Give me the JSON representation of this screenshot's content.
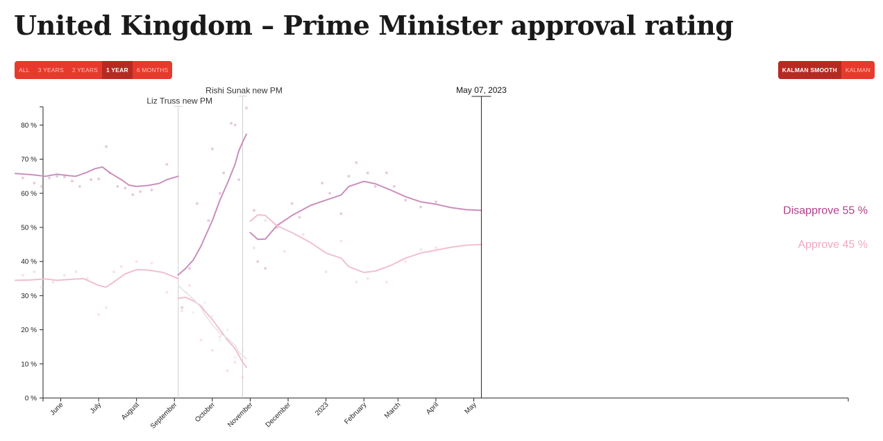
{
  "title": "United Kingdom – Prime Minister approval rating",
  "range_buttons": [
    {
      "label": "ALL",
      "active": false
    },
    {
      "label": "3 YEARS",
      "active": false
    },
    {
      "label": "2 YEARS",
      "active": false
    },
    {
      "label": "1 YEAR",
      "active": true
    },
    {
      "label": "6 MONTHS",
      "active": false
    }
  ],
  "smooth_buttons": [
    {
      "label": "KALMAN SMOOTH",
      "active": true
    },
    {
      "label": "KALMAN",
      "active": false
    }
  ],
  "colors": {
    "disapprove": "#c98fbc",
    "approve": "#f2bfcf",
    "disapprove_label": "#b0408a",
    "approve_label": "#f0a7be",
    "other": "#e2e2e2",
    "axis": "#222222",
    "event_line": "#cfcfcf",
    "button_bg": "#e8392d",
    "button_active": "#b72a22"
  },
  "chart_data": {
    "type": "line",
    "xlabel": "",
    "ylabel": "",
    "x_range": [
      -9.5,
      12.3
    ],
    "ylim": [
      0,
      88
    ],
    "y_ticks": [
      0,
      10,
      20,
      30,
      40,
      50,
      60,
      70,
      80
    ],
    "y_tick_labels": [
      "0 %",
      "10 %",
      "20 %",
      "30 %",
      "40 %",
      "50 %",
      "60 %",
      "70 %",
      "80 %"
    ],
    "x_ticks": [
      {
        "x": -8.3,
        "label": "June"
      },
      {
        "x": -7.3,
        "label": "July"
      },
      {
        "x": -6.3,
        "label": "August"
      },
      {
        "x": -5.3,
        "label": "September"
      },
      {
        "x": -4.3,
        "label": "October"
      },
      {
        "x": -3.3,
        "label": "November"
      },
      {
        "x": -2.3,
        "label": "December"
      },
      {
        "x": -1.3,
        "label": "2023"
      },
      {
        "x": -0.3,
        "label": "February"
      },
      {
        "x": 0.6,
        "label": "March"
      },
      {
        "x": 1.6,
        "label": "April"
      },
      {
        "x": 2.6,
        "label": "May"
      }
    ],
    "events": [
      {
        "x": -5.2,
        "label": "Liz Truss new PM",
        "top": 85.5
      },
      {
        "x": -3.5,
        "label": "Rishi Sunak new PM",
        "top": 88.5
      }
    ],
    "current_date": {
      "x": 2.8,
      "label": "May 07, 2023"
    },
    "end_labels": [
      {
        "series": "Disapprove",
        "text": "Disapprove 55 %",
        "value": 55
      },
      {
        "series": "Approve",
        "text": "Approve 45 %",
        "value": 45
      }
    ],
    "series": [
      {
        "name": "Disapprove",
        "segment": 1,
        "points": [
          [
            -9.5,
            65.8
          ],
          [
            -9.1,
            65.5
          ],
          [
            -8.7,
            65.0
          ],
          [
            -8.4,
            65.6
          ],
          [
            -8.1,
            65.2
          ],
          [
            -7.9,
            65.0
          ],
          [
            -7.6,
            66.2
          ],
          [
            -7.4,
            67.2
          ],
          [
            -7.2,
            67.7
          ],
          [
            -7.0,
            66.0
          ],
          [
            -6.7,
            64.0
          ],
          [
            -6.5,
            62.4
          ],
          [
            -6.3,
            62.0
          ],
          [
            -6.0,
            62.3
          ],
          [
            -5.7,
            62.9
          ],
          [
            -5.5,
            64.0
          ],
          [
            -5.2,
            65.0
          ]
        ]
      },
      {
        "name": "Approve",
        "segment": 1,
        "points": [
          [
            -9.5,
            34.5
          ],
          [
            -9.1,
            34.6
          ],
          [
            -8.7,
            34.9
          ],
          [
            -8.4,
            34.5
          ],
          [
            -8.0,
            34.8
          ],
          [
            -7.7,
            35.0
          ],
          [
            -7.5,
            34.0
          ],
          [
            -7.3,
            33.0
          ],
          [
            -7.1,
            32.5
          ],
          [
            -6.9,
            34.0
          ],
          [
            -6.6,
            36.4
          ],
          [
            -6.3,
            37.6
          ],
          [
            -6.0,
            37.5
          ],
          [
            -5.6,
            36.8
          ],
          [
            -5.2,
            35.0
          ]
        ]
      },
      {
        "name": "Disapprove",
        "segment": 2,
        "points": [
          [
            -5.2,
            36.1
          ],
          [
            -5.0,
            38.0
          ],
          [
            -4.8,
            40.5
          ],
          [
            -4.6,
            44.5
          ],
          [
            -4.5,
            47.0
          ],
          [
            -4.3,
            52.0
          ],
          [
            -4.1,
            58.0
          ],
          [
            -3.9,
            63.0
          ],
          [
            -3.7,
            68.5
          ],
          [
            -3.6,
            72.5
          ],
          [
            -3.5,
            75.0
          ],
          [
            -3.4,
            77.3
          ]
        ]
      },
      {
        "name": "Approve",
        "segment": 2,
        "points": [
          [
            -5.2,
            29.2
          ],
          [
            -5.0,
            29.5
          ],
          [
            -4.8,
            28.5
          ],
          [
            -4.6,
            27.0
          ],
          [
            -4.5,
            25.5
          ],
          [
            -4.3,
            23.0
          ],
          [
            -4.1,
            20.0
          ],
          [
            -3.9,
            17.0
          ],
          [
            -3.7,
            14.5
          ],
          [
            -3.6,
            12.5
          ],
          [
            -3.5,
            10.5
          ],
          [
            -3.4,
            9.0
          ]
        ]
      },
      {
        "name": "Other",
        "segment": 2,
        "points": [
          [
            -5.2,
            33.0
          ],
          [
            -5.0,
            31.0
          ],
          [
            -4.8,
            29.0
          ],
          [
            -4.6,
            26.5
          ],
          [
            -4.5,
            24.5
          ],
          [
            -4.3,
            21.5
          ],
          [
            -4.1,
            19.0
          ],
          [
            -3.9,
            17.5
          ],
          [
            -3.7,
            15.5
          ],
          [
            -3.6,
            13.5
          ],
          [
            -3.5,
            12.5
          ],
          [
            -3.4,
            11.5
          ]
        ]
      },
      {
        "name": "Disapprove",
        "segment": 3,
        "points": [
          [
            -3.3,
            48.5
          ],
          [
            -3.1,
            46.5
          ],
          [
            -2.9,
            46.6
          ],
          [
            -2.6,
            50.5
          ],
          [
            -2.2,
            53.5
          ],
          [
            -1.7,
            56.5
          ],
          [
            -1.3,
            58.0
          ],
          [
            -0.9,
            59.5
          ],
          [
            -0.7,
            62.0
          ],
          [
            -0.3,
            63.5
          ],
          [
            0.0,
            62.8
          ],
          [
            0.4,
            61.0
          ],
          [
            0.8,
            59.0
          ],
          [
            1.2,
            57.5
          ],
          [
            1.6,
            56.8
          ],
          [
            2.0,
            55.8
          ],
          [
            2.4,
            55.2
          ],
          [
            2.8,
            55.0
          ]
        ]
      },
      {
        "name": "Approve",
        "segment": 3,
        "points": [
          [
            -3.3,
            51.8
          ],
          [
            -3.1,
            53.7
          ],
          [
            -2.9,
            53.5
          ],
          [
            -2.6,
            50.5
          ],
          [
            -2.2,
            48.5
          ],
          [
            -1.7,
            45.5
          ],
          [
            -1.3,
            42.5
          ],
          [
            -0.9,
            41.0
          ],
          [
            -0.7,
            38.5
          ],
          [
            -0.3,
            36.8
          ],
          [
            0.0,
            37.2
          ],
          [
            0.4,
            38.8
          ],
          [
            0.8,
            41.0
          ],
          [
            1.2,
            42.5
          ],
          [
            1.6,
            43.3
          ],
          [
            2.0,
            44.2
          ],
          [
            2.4,
            44.8
          ],
          [
            2.8,
            45.0
          ]
        ]
      }
    ],
    "scatter": [
      {
        "name": "Disapprove",
        "points": [
          [
            -9.3,
            64.5
          ],
          [
            -9.0,
            63.0
          ],
          [
            -8.8,
            62.0
          ],
          [
            -8.6,
            64.5
          ],
          [
            -8.4,
            65.0
          ],
          [
            -8.2,
            64.8
          ],
          [
            -8.0,
            63.6
          ],
          [
            -7.8,
            62.0
          ],
          [
            -7.5,
            64.0
          ],
          [
            -7.3,
            64.2
          ],
          [
            -7.1,
            73.7
          ],
          [
            -7.0,
            66.0
          ],
          [
            -6.8,
            62.0
          ],
          [
            -6.6,
            61.5
          ],
          [
            -6.4,
            59.6
          ],
          [
            -6.2,
            60.5
          ],
          [
            -5.9,
            61.0
          ],
          [
            -5.5,
            68.5
          ],
          [
            -5.1,
            26.5
          ],
          [
            -4.9,
            38.0
          ],
          [
            -4.7,
            57.0
          ],
          [
            -4.4,
            52.0
          ],
          [
            -4.3,
            73.0
          ],
          [
            -4.1,
            60.0
          ],
          [
            -4.0,
            66.0
          ],
          [
            -3.8,
            80.5
          ],
          [
            -3.7,
            80.0
          ],
          [
            -3.6,
            64.0
          ],
          [
            -3.4,
            85.0
          ],
          [
            -3.2,
            55.0
          ],
          [
            -3.1,
            40.0
          ],
          [
            -2.9,
            38.0
          ],
          [
            -2.6,
            50.0
          ],
          [
            -2.2,
            57.0
          ],
          [
            -2.0,
            53.0
          ],
          [
            -1.4,
            63.0
          ],
          [
            -1.2,
            60.0
          ],
          [
            -0.9,
            54.0
          ],
          [
            -0.7,
            65.0
          ],
          [
            -0.5,
            69.0
          ],
          [
            -0.2,
            66.0
          ],
          [
            0.0,
            62.0
          ],
          [
            0.3,
            66.0
          ],
          [
            0.5,
            62.0
          ],
          [
            0.8,
            58.0
          ],
          [
            1.2,
            56.0
          ],
          [
            1.6,
            57.5
          ]
        ]
      },
      {
        "name": "Approve",
        "points": [
          [
            -9.3,
            36.0
          ],
          [
            -9.0,
            37.0
          ],
          [
            -8.8,
            32.5
          ],
          [
            -8.5,
            34.0
          ],
          [
            -8.2,
            36.0
          ],
          [
            -7.9,
            37.0
          ],
          [
            -7.6,
            35.0
          ],
          [
            -7.3,
            24.5
          ],
          [
            -7.1,
            26.5
          ],
          [
            -6.9,
            37.0
          ],
          [
            -6.7,
            38.5
          ],
          [
            -6.3,
            40.0
          ],
          [
            -5.9,
            39.5
          ],
          [
            -5.5,
            31.0
          ],
          [
            -5.1,
            25.5
          ],
          [
            -4.9,
            33.0
          ],
          [
            -4.6,
            17.0
          ],
          [
            -4.3,
            14.0
          ],
          [
            -4.1,
            18.0
          ],
          [
            -3.9,
            8.0
          ],
          [
            -3.7,
            10.5
          ],
          [
            -3.5,
            6.0
          ],
          [
            -3.2,
            44.0
          ],
          [
            -2.9,
            52.0
          ],
          [
            -2.4,
            43.0
          ],
          [
            -1.9,
            48.0
          ],
          [
            -1.3,
            37.0
          ],
          [
            -0.9,
            46.0
          ],
          [
            -0.5,
            34.0
          ],
          [
            -0.2,
            35.0
          ],
          [
            0.3,
            34.0
          ],
          [
            0.8,
            40.0
          ],
          [
            1.2,
            43.5
          ],
          [
            1.6,
            44.0
          ]
        ]
      },
      {
        "name": "Other",
        "points": [
          [
            -5.0,
            31.0
          ],
          [
            -4.8,
            25.0
          ],
          [
            -4.5,
            28.0
          ],
          [
            -4.3,
            24.0
          ],
          [
            -4.1,
            17.0
          ],
          [
            -3.9,
            20.0
          ],
          [
            -3.7,
            12.0
          ],
          [
            -3.5,
            14.0
          ]
        ]
      }
    ]
  }
}
